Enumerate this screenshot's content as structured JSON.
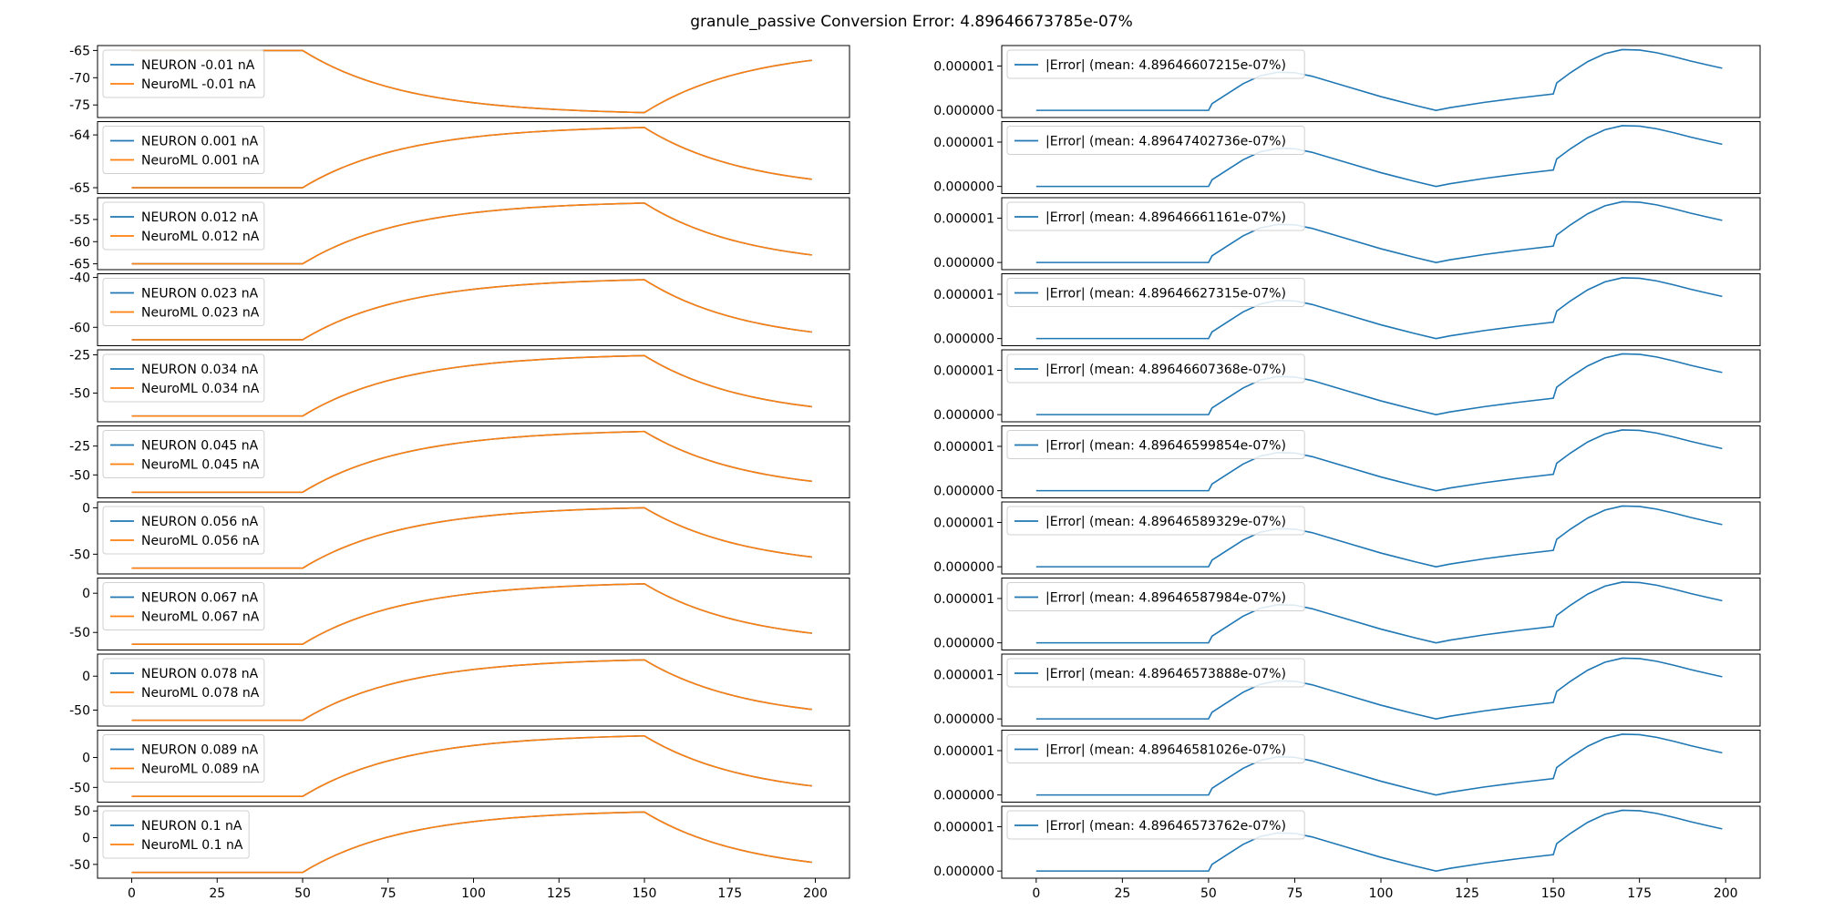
{
  "title": "granule_passive Conversion Error: 4.89646673785e-07%",
  "colors": {
    "neuron": "#1f77b4",
    "neuroml": "#ff7f0e",
    "error": "#1f77b4"
  },
  "x_ticks": [
    0,
    25,
    50,
    75,
    100,
    125,
    150,
    175,
    200
  ],
  "x_tick_labels": [
    "0",
    "25",
    "50",
    "75",
    "100",
    "125",
    "150",
    "175",
    "200"
  ],
  "chart_data": [
    {
      "type": "line",
      "title": "",
      "xlabel": "",
      "ylabel": "",
      "xlim": [
        -10,
        210
      ],
      "grid": false,
      "legend": "top-left",
      "stimulus_window": [
        50,
        150
      ],
      "panels": [
        {
          "current_nA": -0.01,
          "rest": -65,
          "plateau": -76.4,
          "end": -66.8,
          "ylim": [
            -76.8,
            -64.6
          ],
          "y_ticks": [
            -65,
            -70,
            -75
          ],
          "y_tick_labels": [
            "-65",
            "-70",
            "-75"
          ],
          "series": [
            {
              "name": "NEURON -0.01 nA"
            },
            {
              "name": "NeuroML -0.01 nA"
            }
          ]
        },
        {
          "current_nA": 0.001,
          "rest": -65,
          "plateau": -63.86,
          "end": -64.84,
          "ylim": [
            -65.06,
            -63.8
          ],
          "y_ticks": [
            -64,
            -65
          ],
          "y_tick_labels": [
            "-64",
            "-65"
          ],
          "series": [
            {
              "name": "NEURON 0.001 nA"
            },
            {
              "name": "NeuroML 0.001 nA"
            }
          ]
        },
        {
          "current_nA": 0.012,
          "rest": -65,
          "plateau": -51.3,
          "end": -63.0,
          "ylim": [
            -65.7,
            -50.7
          ],
          "y_ticks": [
            -55,
            -60,
            -65
          ],
          "y_tick_labels": [
            "-55",
            "-60",
            "-65"
          ],
          "series": [
            {
              "name": "NEURON 0.012 nA"
            },
            {
              "name": "NeuroML 0.012 nA"
            }
          ]
        },
        {
          "current_nA": 0.023,
          "rest": -65,
          "plateau": -40.9,
          "end": -61.9,
          "ylim": [
            -66.3,
            -39.6
          ],
          "y_ticks": [
            -40,
            -60
          ],
          "y_tick_labels": [
            "-40",
            "-60"
          ],
          "series": [
            {
              "name": "NEURON 0.023 nA"
            },
            {
              "name": "NeuroML 0.023 nA"
            }
          ]
        },
        {
          "current_nA": 0.034,
          "rest": -65,
          "plateau": -25.5,
          "end": -58.9,
          "ylim": [
            -67.0,
            -23.5
          ],
          "y_ticks": [
            -25,
            -50
          ],
          "y_tick_labels": [
            "-25",
            "-50"
          ],
          "series": [
            {
              "name": "NEURON 0.034 nA"
            },
            {
              "name": "NeuroML 0.034 nA"
            }
          ]
        },
        {
          "current_nA": 0.045,
          "rest": -65,
          "plateau": -12.4,
          "end": -55.5,
          "ylim": [
            -67.5,
            -9.9
          ],
          "y_ticks": [
            -25,
            -50
          ],
          "y_tick_labels": [
            "-25",
            "-50"
          ],
          "series": [
            {
              "name": "NEURON 0.045 nA"
            },
            {
              "name": "NeuroML 0.045 nA"
            }
          ]
        },
        {
          "current_nA": 0.056,
          "rest": -65,
          "plateau": 0.0,
          "end": -53.0,
          "ylim": [
            -68.3,
            3.3
          ],
          "y_ticks": [
            0,
            -50
          ],
          "y_tick_labels": [
            "0",
            "-50"
          ],
          "series": [
            {
              "name": "NEURON 0.056 nA"
            },
            {
              "name": "NeuroML 0.056 nA"
            }
          ]
        },
        {
          "current_nA": 0.067,
          "rest": -65,
          "plateau": 12.0,
          "end": -51.0,
          "ylim": [
            -68.9,
            15.9
          ],
          "y_ticks": [
            0,
            -50
          ],
          "y_tick_labels": [
            "0",
            "-50"
          ],
          "series": [
            {
              "name": "NEURON 0.067 nA"
            },
            {
              "name": "NeuroML 0.067 nA"
            }
          ]
        },
        {
          "current_nA": 0.078,
          "rest": -65,
          "plateau": 24.0,
          "end": -49.0,
          "ylim": [
            -69.5,
            28.5
          ],
          "y_ticks": [
            0,
            -50
          ],
          "y_tick_labels": [
            "0",
            "-50"
          ],
          "series": [
            {
              "name": "NEURON 0.078 nA"
            },
            {
              "name": "NeuroML 0.078 nA"
            }
          ]
        },
        {
          "current_nA": 0.089,
          "rest": -65,
          "plateau": 36.0,
          "end": -47.5,
          "ylim": [
            -70.0,
            41.0
          ],
          "y_ticks": [
            0,
            -50
          ],
          "y_tick_labels": [
            "0",
            "-50"
          ],
          "series": [
            {
              "name": "NEURON 0.089 nA"
            },
            {
              "name": "NeuroML 0.089 nA"
            }
          ]
        },
        {
          "current_nA": 0.1,
          "rest": -65,
          "plateau": 48.0,
          "end": -46.0,
          "ylim": [
            -70.7,
            53.7
          ],
          "y_ticks": [
            50,
            0,
            -50
          ],
          "y_tick_labels": [
            "50",
            "0",
            "-50"
          ],
          "series": [
            {
              "name": "NEURON 0.1 nA"
            },
            {
              "name": "NeuroML 0.1 nA"
            }
          ]
        }
      ]
    },
    {
      "type": "line",
      "title": "",
      "xlabel": "",
      "ylabel": "",
      "xlim": [
        -10,
        210
      ],
      "ylim": [
        -1e-07,
        1.4e-06
      ],
      "grid": false,
      "legend": "top-left",
      "y_ticks": [
        0,
        1e-06
      ],
      "y_tick_labels": [
        "0.000000",
        "0.000001"
      ],
      "error_curve": {
        "x": [
          0,
          50,
          51,
          55,
          60,
          65,
          70,
          75,
          80,
          90,
          100,
          110,
          116,
          120,
          130,
          140,
          150,
          151,
          155,
          160,
          165,
          170,
          175,
          180,
          185,
          190,
          195,
          199
        ],
        "y": [
          0,
          0,
          1.5e-07,
          3.5e-07,
          6e-07,
          7.8e-07,
          8.6e-07,
          8.5e-07,
          7.7e-07,
          5.4e-07,
          3.1e-07,
          1.1e-07,
          0,
          6e-08,
          1.8e-07,
          2.8e-07,
          3.7e-07,
          6.2e-07,
          8.5e-07,
          1.1e-06,
          1.28e-06,
          1.37e-06,
          1.36e-06,
          1.3e-06,
          1.21e-06,
          1.11e-06,
          1.02e-06,
          9.5e-07
        ]
      },
      "panels": [
        {
          "series": [
            {
              "name": "|Error| (mean: 4.89646607215e-07%)"
            }
          ]
        },
        {
          "series": [
            {
              "name": "|Error| (mean: 4.89647402736e-07%)"
            }
          ]
        },
        {
          "series": [
            {
              "name": "|Error| (mean: 4.89646661161e-07%)"
            }
          ]
        },
        {
          "series": [
            {
              "name": "|Error| (mean: 4.89646627315e-07%)"
            }
          ]
        },
        {
          "series": [
            {
              "name": "|Error| (mean: 4.89646607368e-07%)"
            }
          ]
        },
        {
          "series": [
            {
              "name": "|Error| (mean: 4.89646599854e-07%)"
            }
          ]
        },
        {
          "series": [
            {
              "name": "|Error| (mean: 4.89646589329e-07%)"
            }
          ]
        },
        {
          "series": [
            {
              "name": "|Error| (mean: 4.89646587984e-07%)"
            }
          ]
        },
        {
          "series": [
            {
              "name": "|Error| (mean: 4.89646573888e-07%)"
            }
          ]
        },
        {
          "series": [
            {
              "name": "|Error| (mean: 4.89646581026e-07%)"
            }
          ]
        },
        {
          "series": [
            {
              "name": "|Error| (mean: 4.89646573762e-07%)"
            }
          ]
        }
      ]
    }
  ]
}
